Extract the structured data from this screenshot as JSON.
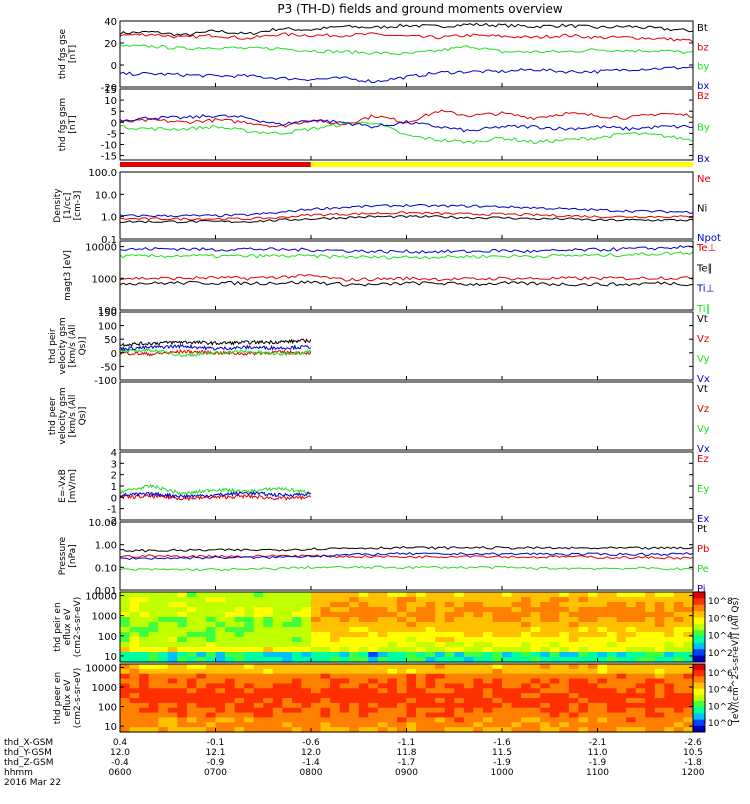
{
  "title": "P3 (TH-D) fields and ground moments overview",
  "colors": {
    "black": "#000000",
    "red": "#e00000",
    "green": "#20e020",
    "blue": "#0000cc",
    "yellow": "#ffff00"
  },
  "time_axis": {
    "rows": [
      {
        "label": "thd_X-GSM",
        "values": [
          "0.4",
          "-0.1",
          "-0.6",
          "-1.1",
          "-1.6",
          "-2.1",
          "-2.6"
        ]
      },
      {
        "label": "thd_Y-GSM",
        "values": [
          "12.0",
          "12.1",
          "12.0",
          "11.8",
          "11.5",
          "11.0",
          "10.5"
        ]
      },
      {
        "label": "thd_Z-GSM",
        "values": [
          "-0.4",
          "-0.9",
          "-1.4",
          "-1.7",
          "-1.9",
          "-1.9",
          "-1.8"
        ]
      },
      {
        "label": "hhmm",
        "values": [
          "0600",
          "0700",
          "0800",
          "0900",
          "1000",
          "1100",
          "1200"
        ]
      }
    ],
    "date": "2016 Mar 22"
  },
  "mode_bar": {
    "red_until": "0800",
    "yellow_from": "0800"
  },
  "colorbar_label": "[eV/(cm^2-s-sr-eV)] (All Qs)",
  "chart_data": [
    {
      "type": "line",
      "ylabel": "thd fgs gse [nT]",
      "ylim": [
        -20,
        40
      ],
      "yticks": [
        "40",
        "20",
        "0",
        "-20"
      ],
      "series": [
        {
          "name": "Bt",
          "color": "black",
          "values": [
            29,
            30,
            27,
            31,
            28,
            33,
            32,
            35,
            34,
            36,
            35,
            37,
            36,
            35,
            36,
            34,
            35,
            33,
            31
          ]
        },
        {
          "name": "bz",
          "color": "red",
          "values": [
            27,
            28,
            25,
            27,
            24,
            28,
            27,
            27,
            28,
            26,
            25,
            27,
            26,
            25,
            27,
            25,
            25,
            24,
            22
          ]
        },
        {
          "name": "by",
          "color": "green",
          "values": [
            17,
            17,
            15,
            16,
            15,
            15,
            13,
            12,
            11,
            10,
            13,
            17,
            12,
            12,
            12,
            14,
            13,
            13,
            11
          ]
        },
        {
          "name": "bx",
          "color": "blue",
          "values": [
            -8,
            -8,
            -9,
            -10,
            -10,
            -12,
            -13,
            -12,
            -15,
            -11,
            -7,
            -6,
            -6,
            -4,
            -6,
            -6,
            -4,
            -3,
            -2
          ]
        }
      ]
    },
    {
      "type": "line",
      "ylabel": "thd fgs gsm [nT]",
      "ylim": [
        -17,
        15
      ],
      "yticks": [
        "15",
        "10",
        "5",
        "0",
        "-5",
        "-10",
        "-15"
      ],
      "series": [
        {
          "name": "Bz",
          "color": "red",
          "values": [
            0,
            1,
            0,
            1,
            0,
            -2,
            1,
            -1,
            3,
            0,
            5,
            3,
            4,
            2,
            4,
            3,
            2,
            4,
            3
          ]
        },
        {
          "name": "By",
          "color": "green",
          "values": [
            -2,
            -3,
            -3,
            -2,
            -4,
            -5,
            -3,
            -1,
            0,
            -6,
            -8,
            -9,
            -7,
            -9,
            -8,
            -7,
            -5,
            -6,
            -8
          ]
        },
        {
          "name": "Bx",
          "color": "blue",
          "values": [
            1,
            2,
            2,
            3,
            2,
            -1,
            1,
            0,
            -2,
            0,
            -2,
            -4,
            -2,
            -2,
            -3,
            -2,
            -3,
            -2,
            -2
          ]
        }
      ]
    },
    {
      "type": "line",
      "ylabel": "Density [1/cc] [cm-3]",
      "log": true,
      "ylim": [
        0.1,
        100
      ],
      "yticks": [
        "100.0",
        "10.0",
        "1.0",
        "0.1"
      ],
      "series": [
        {
          "name": "Ne",
          "color": "red",
          "values": [
            0.8,
            0.8,
            0.8,
            0.8,
            0.8,
            0.9,
            1.2,
            1.3,
            1.4,
            1.5,
            1.4,
            1.3,
            1.3,
            1.2,
            1.1,
            1.0,
            1.0,
            1.0,
            1.0
          ]
        },
        {
          "name": "Ni",
          "color": "black",
          "values": [
            0.6,
            0.6,
            0.6,
            0.6,
            0.6,
            0.7,
            0.8,
            0.9,
            1.0,
            1.0,
            1.0,
            0.9,
            0.9,
            0.8,
            0.8,
            0.7,
            0.7,
            0.7,
            0.7
          ]
        },
        {
          "name": "Npot",
          "color": "blue",
          "values": [
            1.1,
            1.1,
            1.1,
            1.1,
            1.2,
            1.5,
            2.2,
            2.6,
            3.0,
            3.2,
            3.0,
            3.0,
            2.8,
            2.5,
            2.2,
            2.0,
            1.8,
            1.7,
            1.6
          ]
        }
      ]
    },
    {
      "type": "line",
      "ylabel": "magt3 [eV]",
      "log": true,
      "ylim": [
        100,
        15000
      ],
      "yticks": [
        "10000",
        "1000",
        "100"
      ],
      "series": [
        {
          "name": "Te⊥",
          "color": "red",
          "values": [
            1000,
            1000,
            1000,
            1050,
            1000,
            1100,
            1200,
            900,
            950,
            1000,
            950,
            950,
            1000,
            980,
            1000,
            1000,
            1000,
            1050,
            1000
          ]
        },
        {
          "name": "Te∥",
          "color": "black",
          "values": [
            700,
            700,
            720,
            720,
            700,
            720,
            760,
            650,
            620,
            700,
            700,
            650,
            700,
            680,
            650,
            650,
            640,
            720,
            650
          ]
        },
        {
          "name": "Ti⊥",
          "color": "blue",
          "values": [
            8000,
            8500,
            8500,
            8000,
            8500,
            8000,
            8000,
            7500,
            7000,
            7000,
            7000,
            7000,
            7500,
            7000,
            7500,
            8000,
            8500,
            9000,
            10000
          ]
        },
        {
          "name": "Ti∥",
          "color": "green",
          "values": [
            5000,
            5000,
            5200,
            5000,
            5000,
            5100,
            5000,
            4800,
            4600,
            4700,
            4700,
            4900,
            5000,
            5000,
            5200,
            5300,
            5600,
            6000,
            6500
          ]
        }
      ]
    },
    {
      "type": "line",
      "ylabel": "thd peir velocity gsm [km/s (All Qs)]",
      "ylim": [
        -100,
        150
      ],
      "yticks": [
        "150",
        "100",
        "50",
        "0",
        "-50",
        "-100"
      ],
      "series": [
        {
          "name": "Vt",
          "color": "black",
          "values": [
            30,
            35,
            40,
            35,
            38,
            40,
            45
          ]
        },
        {
          "name": "Vz",
          "color": "red",
          "values": [
            0,
            -5,
            5,
            0,
            -3,
            2,
            0
          ]
        },
        {
          "name": "Vy",
          "color": "green",
          "values": [
            5,
            10,
            -10,
            0,
            5,
            -5,
            5
          ]
        },
        {
          "name": "Vx",
          "color": "blue",
          "values": [
            15,
            20,
            25,
            15,
            20,
            18,
            22
          ]
        }
      ]
    },
    {
      "type": "line",
      "ylabel": "thd peer velocity gsm [km/s (All Qs)]",
      "ylim": [
        -100,
        150
      ],
      "yticks": [],
      "series": [
        {
          "name": "Vt",
          "color": "black",
          "values": []
        },
        {
          "name": "Vz",
          "color": "red",
          "values": []
        },
        {
          "name": "Vy",
          "color": "green",
          "values": []
        },
        {
          "name": "Vx",
          "color": "blue",
          "values": []
        }
      ]
    },
    {
      "type": "line",
      "ylabel": "E=-VxB [mV/m]",
      "ylim": [
        -2,
        4
      ],
      "yticks": [
        "4",
        "3",
        "2",
        "1",
        "0",
        "-1",
        "-2"
      ],
      "series": [
        {
          "name": "Ez",
          "color": "red",
          "values": [
            0,
            0.1,
            -0.1,
            0,
            0.1,
            -0.1,
            0
          ]
        },
        {
          "name": "Ey",
          "color": "green",
          "values": [
            0.5,
            1.0,
            0.3,
            0.7,
            0.5,
            0.8,
            0.4
          ]
        },
        {
          "name": "Ex",
          "color": "blue",
          "values": [
            0.2,
            0.3,
            0.1,
            0.2,
            0.4,
            0.2,
            0.3
          ]
        }
      ]
    },
    {
      "type": "line",
      "ylabel": "Pressure [nPa]",
      "log": true,
      "ylim": [
        0.01,
        10
      ],
      "yticks": [
        "10.00",
        "1.00",
        "0.10",
        "0.01"
      ],
      "series": [
        {
          "name": "Pt",
          "color": "black",
          "values": [
            0.55,
            0.55,
            0.56,
            0.58,
            0.58,
            0.6,
            0.65,
            0.7,
            0.72,
            0.75,
            0.72,
            0.75,
            0.72,
            0.72,
            0.7,
            0.7,
            0.7,
            0.7,
            0.72
          ]
        },
        {
          "name": "Pb",
          "color": "red",
          "values": [
            0.3,
            0.32,
            0.3,
            0.32,
            0.3,
            0.33,
            0.32,
            0.3,
            0.3,
            0.29,
            0.3,
            0.32,
            0.3,
            0.28,
            0.3,
            0.28,
            0.27,
            0.27,
            0.25
          ]
        },
        {
          "name": "Pe",
          "color": "green",
          "values": [
            0.08,
            0.08,
            0.08,
            0.08,
            0.08,
            0.09,
            0.1,
            0.1,
            0.1,
            0.1,
            0.1,
            0.1,
            0.1,
            0.09,
            0.09,
            0.09,
            0.09,
            0.09,
            0.08
          ]
        },
        {
          "name": "Pi",
          "color": "blue",
          "values": [
            0.25,
            0.25,
            0.26,
            0.27,
            0.27,
            0.28,
            0.32,
            0.35,
            0.38,
            0.4,
            0.38,
            0.4,
            0.38,
            0.4,
            0.38,
            0.38,
            0.38,
            0.38,
            0.4
          ]
        }
      ]
    },
    {
      "type": "heatmap",
      "ylabel": "thd peir en eflux eV (cm2-s-sr-eV)",
      "log": true,
      "ylim": [
        5,
        15000
      ],
      "yticks": [
        "10000",
        "1000",
        "100",
        "10"
      ]
    },
    {
      "type": "heatmap",
      "ylabel": "thd peer en eflux eV (cm2-s-sr-eV)",
      "log": true,
      "ylim": [
        5,
        15000
      ],
      "yticks": [
        "10000",
        "1000",
        "100",
        "10"
      ]
    }
  ],
  "colorbar": {
    "ticks_upper": [
      "10^8",
      "10^6",
      "10^4",
      "10^2"
    ],
    "ticks_lower": [
      "10^6",
      "10^4",
      "10^2",
      "10^0"
    ]
  }
}
